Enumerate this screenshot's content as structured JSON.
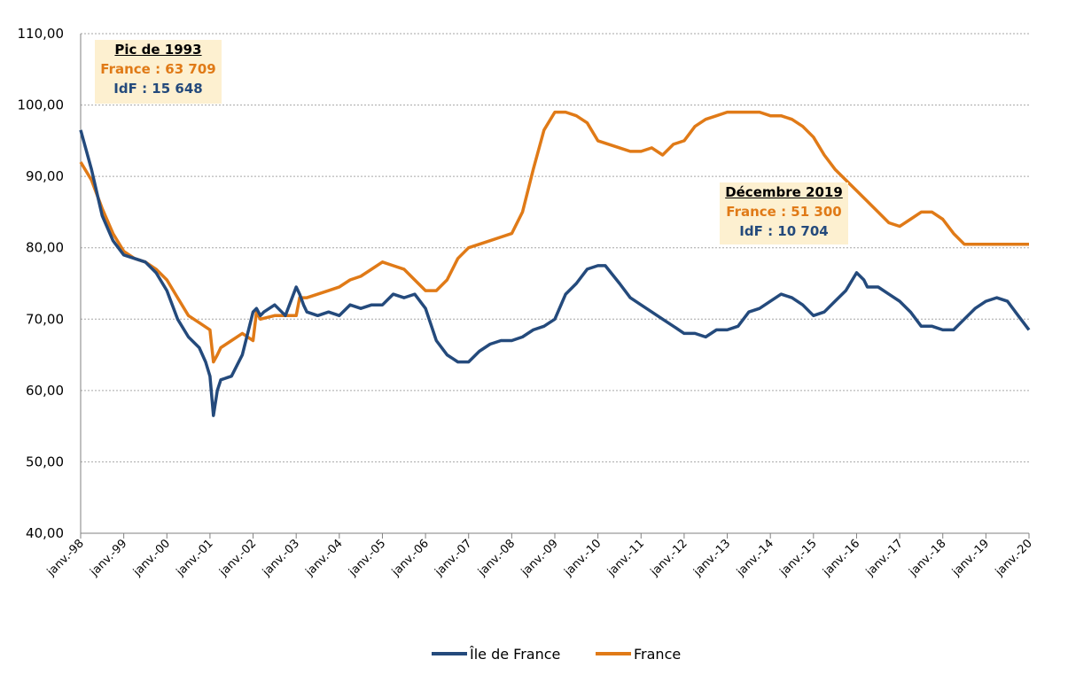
{
  "colors": {
    "idf": "#244a7c",
    "france": "#e07a17",
    "annotation_bg": "#fdf0d0"
  },
  "annotations": [
    {
      "title": "Pic de 1993",
      "france": "France : 63 709",
      "idf": "IdF : 15 648"
    },
    {
      "title": "Décembre 2019",
      "france": "France : 51 300",
      "idf": "IdF : 10 704"
    }
  ],
  "chart_data": {
    "type": "line",
    "ylim": [
      40,
      110
    ],
    "yticks": [
      "40,00",
      "50,00",
      "60,00",
      "70,00",
      "80,00",
      "90,00",
      "100,00",
      "110,00"
    ],
    "x_labels": [
      "janv.-98",
      "janv.-99",
      "janv.-00",
      "janv.-01",
      "janv.-02",
      "janv.-03",
      "janv.-04",
      "janv.-05",
      "janv.-06",
      "janv.-07",
      "janv.-08",
      "janv.-09",
      "janv.-10",
      "janv.-11",
      "janv.-12",
      "janv.-13",
      "janv.-14",
      "janv.-15",
      "janv.-16",
      "janv.-17",
      "janv.-18",
      "janv.-19",
      "janv.-20"
    ],
    "xlim": [
      1998.0,
      2020.0
    ],
    "legend": "bottom",
    "grid": true,
    "series": [
      {
        "name": "Île de France",
        "x": [
          1998.0,
          1998.25,
          1998.5,
          1998.75,
          1999.0,
          1999.25,
          1999.5,
          1999.75,
          2000.0,
          2000.25,
          2000.5,
          2000.75,
          2000.9,
          2001.0,
          2001.08,
          2001.17,
          2001.25,
          2001.5,
          2001.75,
          2002.0,
          2002.08,
          2002.17,
          2002.25,
          2002.5,
          2002.75,
          2003.0,
          2003.08,
          2003.17,
          2003.25,
          2003.5,
          2003.75,
          2004.0,
          2004.25,
          2004.5,
          2004.75,
          2005.0,
          2005.25,
          2005.5,
          2005.75,
          2006.0,
          2006.25,
          2006.5,
          2006.75,
          2007.0,
          2007.25,
          2007.5,
          2007.75,
          2008.0,
          2008.25,
          2008.5,
          2008.75,
          2009.0,
          2009.25,
          2009.5,
          2009.75,
          2010.0,
          2010.17,
          2010.5,
          2010.75,
          2011.0,
          2011.25,
          2011.5,
          2011.75,
          2012.0,
          2012.25,
          2012.5,
          2012.75,
          2013.0,
          2013.25,
          2013.5,
          2013.75,
          2014.0,
          2014.25,
          2014.5,
          2014.75,
          2015.0,
          2015.25,
          2015.5,
          2015.75,
          2016.0,
          2016.17,
          2016.25,
          2016.5,
          2016.75,
          2017.0,
          2017.25,
          2017.5,
          2017.75,
          2018.0,
          2018.25,
          2018.5,
          2018.75,
          2019.0,
          2019.25,
          2019.5,
          2019.75,
          2020.0
        ],
        "values": [
          96.5,
          91.0,
          84.5,
          81.0,
          79.0,
          78.5,
          78.0,
          76.5,
          74.0,
          70.0,
          67.5,
          66.0,
          64.0,
          62.0,
          56.5,
          60.0,
          61.5,
          62.0,
          65.0,
          71.0,
          71.5,
          70.5,
          71.0,
          72.0,
          70.5,
          74.5,
          73.5,
          72.0,
          71.0,
          70.5,
          71.0,
          70.5,
          72.0,
          71.5,
          72.0,
          72.0,
          73.5,
          73.0,
          73.5,
          71.5,
          67.0,
          65.0,
          64.0,
          64.0,
          65.5,
          66.5,
          67.0,
          67.0,
          67.5,
          68.5,
          69.0,
          70.0,
          73.5,
          75.0,
          77.0,
          77.5,
          77.5,
          75.0,
          73.0,
          72.0,
          71.0,
          70.0,
          69.0,
          68.0,
          68.0,
          67.5,
          68.5,
          68.5,
          69.0,
          71.0,
          71.5,
          72.5,
          73.5,
          73.0,
          72.0,
          70.5,
          71.0,
          72.5,
          74.0,
          76.5,
          75.5,
          74.5,
          74.5,
          73.5,
          72.5,
          71.0,
          69.0,
          69.0,
          68.5,
          68.5,
          70.0,
          71.5,
          72.5,
          73.0,
          72.5,
          70.5,
          68.5
        ]
      },
      {
        "name": "France",
        "x": [
          1998.0,
          1998.25,
          1998.5,
          1998.75,
          1999.0,
          1999.25,
          1999.5,
          1999.75,
          2000.0,
          2000.25,
          2000.5,
          2000.75,
          2001.0,
          2001.08,
          2001.17,
          2001.25,
          2001.5,
          2001.75,
          2002.0,
          2002.08,
          2002.17,
          2002.5,
          2002.75,
          2003.0,
          2003.08,
          2003.25,
          2003.5,
          2003.75,
          2004.0,
          2004.25,
          2004.5,
          2004.75,
          2005.0,
          2005.25,
          2005.5,
          2005.75,
          2006.0,
          2006.25,
          2006.5,
          2006.75,
          2007.0,
          2007.25,
          2007.5,
          2007.75,
          2008.0,
          2008.25,
          2008.5,
          2008.75,
          2009.0,
          2009.25,
          2009.5,
          2009.75,
          2010.0,
          2010.25,
          2010.5,
          2010.75,
          2011.0,
          2011.25,
          2011.5,
          2011.75,
          2012.0,
          2012.25,
          2012.5,
          2012.75,
          2013.0,
          2013.25,
          2013.5,
          2013.75,
          2014.0,
          2014.25,
          2014.5,
          2014.75,
          2015.0,
          2015.25,
          2015.5,
          2015.75,
          2016.0,
          2016.25,
          2016.5,
          2016.75,
          2017.0,
          2017.25,
          2017.5,
          2017.75,
          2018.0,
          2018.25,
          2018.5,
          2018.75,
          2019.0,
          2019.25,
          2019.5,
          2019.75,
          2020.0
        ],
        "values": [
          92.0,
          89.5,
          85.5,
          82.0,
          79.5,
          78.5,
          78.0,
          77.0,
          75.5,
          73.0,
          70.5,
          69.5,
          68.5,
          64.0,
          65.0,
          66.0,
          67.0,
          68.0,
          67.0,
          71.0,
          70.0,
          70.5,
          70.5,
          70.5,
          73.0,
          73.0,
          73.5,
          74.0,
          74.5,
          75.5,
          76.0,
          77.0,
          78.0,
          77.5,
          77.0,
          75.5,
          74.0,
          74.0,
          75.5,
          78.5,
          80.0,
          80.5,
          81.0,
          81.5,
          82.0,
          85.0,
          91.0,
          96.5,
          99.0,
          99.0,
          98.5,
          97.5,
          95.0,
          94.5,
          94.0,
          93.5,
          93.5,
          94.0,
          93.0,
          94.5,
          95.0,
          97.0,
          98.0,
          98.5,
          99.0,
          99.0,
          99.0,
          99.0,
          98.5,
          98.5,
          98.0,
          97.0,
          95.5,
          93.0,
          91.0,
          89.5,
          88.0,
          86.5,
          85.0,
          83.5,
          83.0,
          84.0,
          85.0,
          85.0,
          84.0,
          82.0,
          80.5,
          80.5,
          80.5,
          80.5,
          80.5,
          80.5,
          80.5
        ]
      }
    ]
  }
}
